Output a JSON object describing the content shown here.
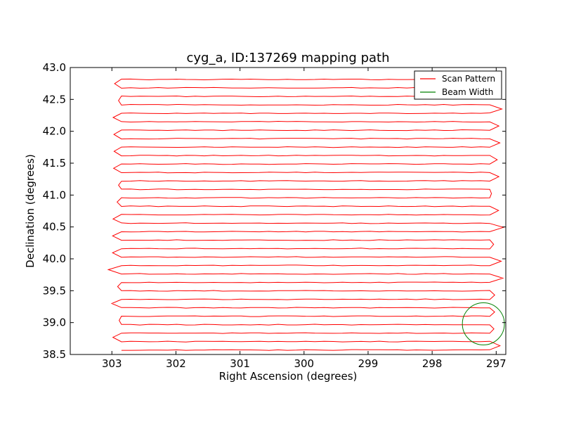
{
  "chart_data": {
    "type": "line",
    "title": "cyg_a, ID:137269 mapping path",
    "xlabel": "Right Ascension (degrees)",
    "ylabel": "Declination (degrees)",
    "xlim": [
      303.65,
      296.85
    ],
    "ylim": [
      38.5,
      43.0
    ],
    "x_ticks": [
      303,
      302,
      301,
      300,
      299,
      298,
      297
    ],
    "x_tick_labels": [
      "303",
      "302",
      "301",
      "300",
      "299",
      "298",
      "297"
    ],
    "y_ticks": [
      38.5,
      39.0,
      39.5,
      40.0,
      40.5,
      41.0,
      41.5,
      42.0,
      42.5,
      43.0
    ],
    "y_tick_labels": [
      "38.5",
      "39.0",
      "39.5",
      "40.0",
      "40.5",
      "41.0",
      "41.5",
      "42.0",
      "42.5",
      "43.0"
    ],
    "x_reversed": true,
    "grid": false,
    "legend_position": "top-right",
    "series": [
      {
        "name": "Scan Pattern",
        "color": "#ff0000",
        "scan_ra_range": [
          302.85,
          297.1
        ],
        "dec_start": 38.57,
        "dec_end": 42.9,
        "num_rows": 33,
        "row_spacing": 0.1326
      },
      {
        "name": "Beam Width",
        "color": "#008000",
        "shape": "circle",
        "center": [
          297.2,
          38.98
        ],
        "radius_dec": 0.33
      }
    ]
  }
}
